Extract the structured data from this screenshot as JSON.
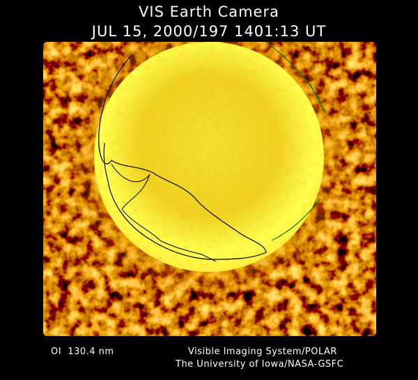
{
  "header": {
    "title": "VIS Earth Camera",
    "timestamp": "JUL 15, 2000/197 1401:13 UT"
  },
  "footer": {
    "filter": "OI  130.4 nm",
    "credit_line_1": "Visible Imaging System/POLAR",
    "credit_line_2": "The University of Iowa/NASA-GSFC"
  }
}
